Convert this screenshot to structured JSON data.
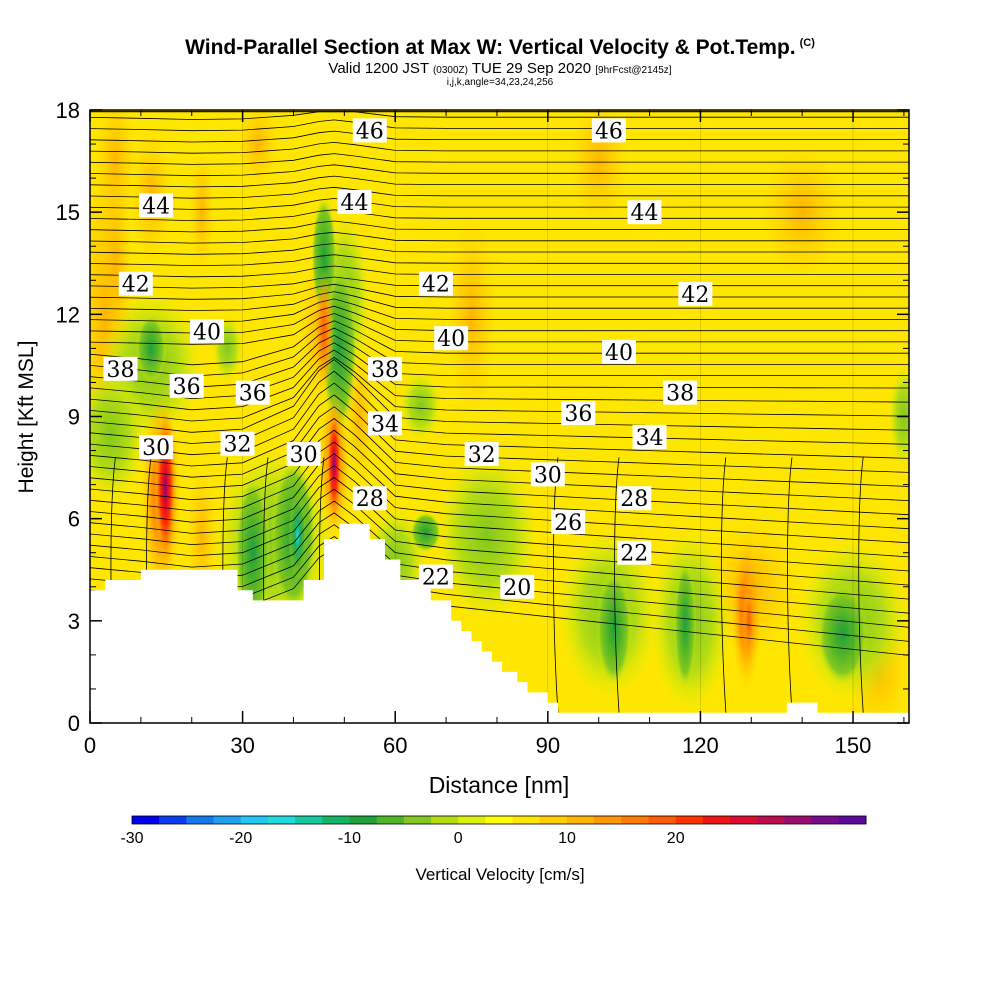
{
  "header": {
    "title": "Wind-Parallel Section at Max W: Vertical Velocity & Pot.Temp.",
    "copyright": "(C)",
    "valid_prefix": "Valid 1200 JST",
    "valid_utc": "(0300Z)",
    "valid_date": "TUE 29 Sep 2020",
    "forecast": "[9hrFcst@2145z]",
    "params": "i,j,k,angle=34,23,24,256"
  },
  "colorbar": {
    "label": "Vertical Velocity [cm/s]",
    "ticks": [
      "-30",
      "-20",
      "-10",
      "0",
      "10",
      "20"
    ],
    "colors": [
      "#0000f0",
      "#0a3cf0",
      "#1478f0",
      "#1ea0f0",
      "#1ec8f0",
      "#1edcdc",
      "#14c8a0",
      "#14b464",
      "#1ea03c",
      "#50b428",
      "#82c81e",
      "#b4dc14",
      "#dcf00a",
      "#ffff00",
      "#ffe600",
      "#ffcd00",
      "#ffb400",
      "#ff9600",
      "#ff7800",
      "#ff5a00",
      "#ff3200",
      "#f01414",
      "#dc0a32",
      "#be0a50",
      "#9b0a6e",
      "#780a8c",
      "#5a0a9b"
    ]
  },
  "chart_data": {
    "type": "heatmap",
    "xlabel": "Distance [nm]",
    "ylabel": "Height [Kft MSL]",
    "xlim": [
      0,
      161
    ],
    "ylim": [
      0,
      18
    ],
    "xticks": [
      "0",
      "30",
      "60",
      "90",
      "120",
      "150"
    ],
    "yticks": [
      "0",
      "3",
      "6",
      "9",
      "12",
      "15",
      "18"
    ],
    "field": "Vertical Velocity [cm/s]",
    "contour_field": "Potential Temperature",
    "contour_labels": [
      {
        "text": "46",
        "x": 55,
        "y": 17.4
      },
      {
        "text": "46",
        "x": 102,
        "y": 17.4
      },
      {
        "text": "44",
        "x": 13,
        "y": 15.2
      },
      {
        "text": "44",
        "x": 52,
        "y": 15.3
      },
      {
        "text": "44",
        "x": 109,
        "y": 15.0
      },
      {
        "text": "42",
        "x": 9,
        "y": 12.9
      },
      {
        "text": "42",
        "x": 68,
        "y": 12.9
      },
      {
        "text": "42",
        "x": 119,
        "y": 12.6
      },
      {
        "text": "40",
        "x": 23,
        "y": 11.5
      },
      {
        "text": "40",
        "x": 71,
        "y": 11.3
      },
      {
        "text": "40",
        "x": 104,
        "y": 10.9
      },
      {
        "text": "38",
        "x": 6,
        "y": 10.4
      },
      {
        "text": "38",
        "x": 58,
        "y": 10.4
      },
      {
        "text": "38",
        "x": 116,
        "y": 9.7
      },
      {
        "text": "36",
        "x": 19,
        "y": 9.9
      },
      {
        "text": "36",
        "x": 32,
        "y": 9.7
      },
      {
        "text": "36",
        "x": 96,
        "y": 9.1
      },
      {
        "text": "34",
        "x": 58,
        "y": 8.8
      },
      {
        "text": "34",
        "x": 110,
        "y": 8.4
      },
      {
        "text": "30",
        "x": 13,
        "y": 8.1
      },
      {
        "text": "32",
        "x": 29,
        "y": 8.2
      },
      {
        "text": "32",
        "x": 77,
        "y": 7.9
      },
      {
        "text": "30",
        "x": 42,
        "y": 7.9
      },
      {
        "text": "30",
        "x": 90,
        "y": 7.3
      },
      {
        "text": "28",
        "x": 55,
        "y": 6.6
      },
      {
        "text": "28",
        "x": 107,
        "y": 6.6
      },
      {
        "text": "26",
        "x": 94,
        "y": 5.9
      },
      {
        "text": "22",
        "x": 107,
        "y": 5.0
      },
      {
        "text": "22",
        "x": 68,
        "y": 4.3
      },
      {
        "text": "20",
        "x": 84,
        "y": 4.0
      }
    ],
    "updraft_maxima": [
      {
        "x": 15,
        "y": 7.0,
        "value": 25
      },
      {
        "x": 48,
        "y": 7.5,
        "value": 25
      },
      {
        "x": 129,
        "y": 3.0,
        "value": 12
      }
    ],
    "downdraft_minima": [
      {
        "x": 41,
        "y": 5.5,
        "value": -22
      },
      {
        "x": 33,
        "y": 5.0,
        "value": -13
      },
      {
        "x": 47,
        "y": 10.5,
        "value": -8
      }
    ],
    "terrain_kft": [
      [
        0,
        3.9
      ],
      [
        3,
        3.9
      ],
      [
        3,
        4.2
      ],
      [
        10,
        4.2
      ],
      [
        10,
        4.5
      ],
      [
        29,
        4.5
      ],
      [
        29,
        3.9
      ],
      [
        32,
        3.9
      ],
      [
        32,
        3.6
      ],
      [
        42,
        3.6
      ],
      [
        42,
        4.2
      ],
      [
        46,
        4.2
      ],
      [
        46,
        5.4
      ],
      [
        49,
        5.4
      ],
      [
        49,
        5.85
      ],
      [
        55,
        5.85
      ],
      [
        55,
        5.4
      ],
      [
        58,
        5.4
      ],
      [
        58,
        4.8
      ],
      [
        61,
        4.8
      ],
      [
        61,
        4.2
      ],
      [
        67,
        4.2
      ],
      [
        67,
        3.6
      ],
      [
        71,
        3.6
      ],
      [
        71,
        3.0
      ],
      [
        73,
        3.0
      ],
      [
        73,
        2.7
      ],
      [
        75,
        2.7
      ],
      [
        75,
        2.4
      ],
      [
        77,
        2.4
      ],
      [
        77,
        2.1
      ],
      [
        79,
        2.1
      ],
      [
        79,
        1.8
      ],
      [
        81,
        1.8
      ],
      [
        81,
        1.5
      ],
      [
        84,
        1.5
      ],
      [
        84,
        1.2
      ],
      [
        86,
        1.2
      ],
      [
        86,
        0.9
      ],
      [
        90,
        0.9
      ],
      [
        90,
        0.6
      ],
      [
        92,
        0.6
      ],
      [
        92,
        0.3
      ],
      [
        137,
        0.3
      ],
      [
        137,
        0.6
      ],
      [
        143,
        0.6
      ],
      [
        143,
        0.3
      ],
      [
        161,
        0.3
      ]
    ]
  }
}
